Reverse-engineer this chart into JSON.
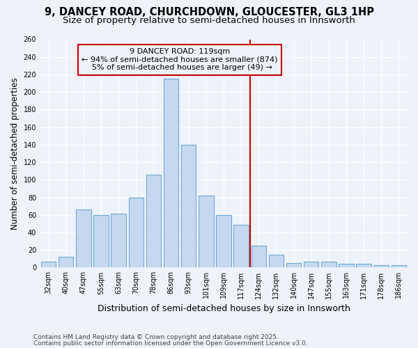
{
  "title_line1": "9, DANCEY ROAD, CHURCHDOWN, GLOUCESTER, GL3 1HP",
  "title_line2": "Size of property relative to semi-detached houses in Innsworth",
  "xlabel": "Distribution of semi-detached houses by size in Innsworth",
  "ylabel": "Number of semi-detached properties",
  "categories": [
    "32sqm",
    "40sqm",
    "47sqm",
    "55sqm",
    "63sqm",
    "70sqm",
    "78sqm",
    "86sqm",
    "93sqm",
    "101sqm",
    "109sqm",
    "117sqm",
    "124sqm",
    "132sqm",
    "140sqm",
    "147sqm",
    "155sqm",
    "163sqm",
    "171sqm",
    "178sqm",
    "186sqm"
  ],
  "values": [
    7,
    12,
    66,
    60,
    61,
    80,
    106,
    215,
    140,
    82,
    60,
    49,
    25,
    15,
    5,
    7,
    7,
    4,
    4,
    3,
    3
  ],
  "bar_color": "#c5d8f0",
  "bar_edge_color": "#6aaad4",
  "highlight_label": "9 DANCEY ROAD: 119sqm",
  "highlight_pct_smaller": "94% of semi-detached houses are smaller (874)",
  "highlight_pct_larger": "5% of semi-detached houses are larger (49)",
  "vline_color": "#cc0000",
  "annotation_box_edge_color": "#cc0000",
  "ylim": [
    0,
    260
  ],
  "yticks": [
    0,
    20,
    40,
    60,
    80,
    100,
    120,
    140,
    160,
    180,
    200,
    220,
    240,
    260
  ],
  "background_color": "#eef2fa",
  "grid_color": "#ffffff",
  "footer_line1": "Contains HM Land Registry data © Crown copyright and database right 2025.",
  "footer_line2": "Contains public sector information licensed under the Open Government Licence v3.0.",
  "title_fontsize": 10.5,
  "subtitle_fontsize": 9.5,
  "ylabel_fontsize": 8.5,
  "xlabel_fontsize": 9,
  "tick_fontsize": 7,
  "annotation_fontsize": 8,
  "footer_fontsize": 6.5
}
